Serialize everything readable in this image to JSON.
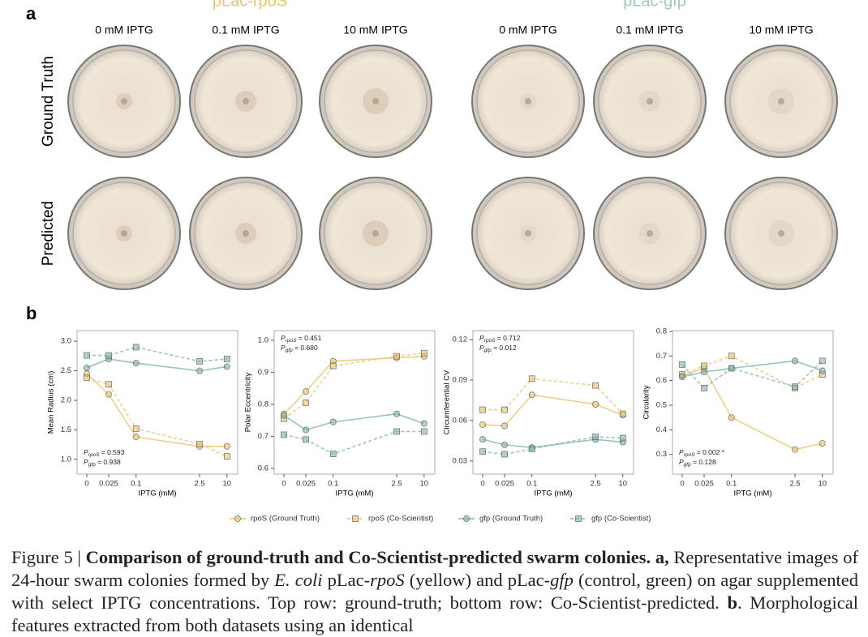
{
  "panel_a": {
    "label": "a",
    "groups": [
      {
        "title": "pLac-rpoS",
        "color": "#e9c46a",
        "columns": [
          "0 mM IPTG",
          "0.1 mM IPTG",
          "10 mM IPTG"
        ]
      },
      {
        "title": "pLac-gfp",
        "color": "#9cc9c4",
        "columns": [
          "0 mM IPTG",
          "0.1 mM IPTG",
          "10 mM IPTG"
        ]
      }
    ],
    "rows": [
      "Ground Truth",
      "Predicted"
    ]
  },
  "panel_b_label": "b",
  "chart_data": [
    {
      "type": "line",
      "xscale": "symlog",
      "x": [
        0,
        0.025,
        0.1,
        2.5,
        10
      ],
      "xlabel": "IPTG (mM)",
      "ylabel": "Mean Radius (cm)",
      "ylim": [
        0.75,
        3.18
      ],
      "yticks": [
        {
          "value": 1,
          "label": "1.0"
        },
        {
          "value": 1.5,
          "label": "1.5"
        },
        {
          "value": 2,
          "label": "2.0"
        },
        {
          "value": 2.5,
          "label": "2.5"
        },
        {
          "value": 3,
          "label": "3.0"
        }
      ],
      "annotation_corner": "lower left",
      "annotations": [
        {
          "main": "P",
          "sub": "rpoS",
          "rest": " = 0.593"
        },
        {
          "main": "P",
          "sub": "gfp",
          "rest": " = 0.938"
        }
      ],
      "series": [
        {
          "name": "rpoS (Ground Truth)",
          "color": "#e9c46a",
          "marker": "circle",
          "dashed": false,
          "values": [
            2.45,
            2.1,
            1.38,
            1.22,
            1.22
          ]
        },
        {
          "name": "rpoS (Co-Scientist)",
          "color": "#e9c46a",
          "marker": "square",
          "dashed": true,
          "values": [
            2.38,
            2.27,
            1.52,
            1.26,
            1.05
          ]
        },
        {
          "name": "gfp (Ground Truth)",
          "color": "#7fb5b0",
          "marker": "circle",
          "dashed": false,
          "values": [
            2.55,
            2.7,
            2.63,
            2.5,
            2.57
          ]
        },
        {
          "name": "gfp (Co-Scientist)",
          "color": "#7fb5b0",
          "marker": "square",
          "dashed": true,
          "values": [
            2.76,
            2.76,
            2.9,
            2.66,
            2.7
          ]
        }
      ]
    },
    {
      "type": "line",
      "xscale": "symlog",
      "x": [
        0,
        0.025,
        0.1,
        2.5,
        10
      ],
      "xlabel": "IPTG (mM)",
      "ylabel": "Polar Eccentricity",
      "ylim": [
        0.582,
        1.03
      ],
      "yticks": [
        0.6,
        0.7,
        0.8,
        0.9,
        {
          "value": 1,
          "label": "1.0"
        }
      ],
      "annotation_corner": "upper left",
      "annotations": [
        {
          "main": "P",
          "sub": "rpoS",
          "rest": " = 0.451"
        },
        {
          "main": "P",
          "sub": "gfp",
          "rest": " = 0.680"
        }
      ],
      "series": [
        {
          "name": "rpoS (Ground Truth)",
          "color": "#e9c46a",
          "marker": "circle",
          "dashed": false,
          "values": [
            0.77,
            0.84,
            0.935,
            0.945,
            0.95
          ]
        },
        {
          "name": "rpoS (Co-Scientist)",
          "color": "#e9c46a",
          "marker": "square",
          "dashed": true,
          "values": [
            0.755,
            0.805,
            0.92,
            0.95,
            0.96
          ]
        },
        {
          "name": "gfp (Ground Truth)",
          "color": "#7fb5b0",
          "marker": "circle",
          "dashed": false,
          "values": [
            0.765,
            0.72,
            0.745,
            0.77,
            0.74
          ]
        },
        {
          "name": "gfp (Co-Scientist)",
          "color": "#7fb5b0",
          "marker": "square",
          "dashed": true,
          "values": [
            0.705,
            0.69,
            0.645,
            0.715,
            0.715
          ]
        }
      ]
    },
    {
      "type": "line",
      "xscale": "symlog",
      "x": [
        0,
        0.025,
        0.1,
        2.5,
        10
      ],
      "xlabel": "IPTG (mM)",
      "ylabel": "Circumferential CV",
      "ylim": [
        0.0203,
        0.1266
      ],
      "yticks": [
        0.03,
        0.06,
        0.09,
        {
          "value": 0.12,
          "label": "0.12"
        }
      ],
      "annotation_corner": "upper left",
      "annotations": [
        {
          "main": "P",
          "sub": "rpoS",
          "rest": " = 0.712"
        },
        {
          "main": "P",
          "sub": "gfp",
          "rest": " = 0.012"
        }
      ],
      "series": [
        {
          "name": "rpoS (Ground Truth)",
          "color": "#e9c46a",
          "marker": "circle",
          "dashed": false,
          "values": [
            0.057,
            0.056,
            0.079,
            0.072,
            0.064
          ]
        },
        {
          "name": "rpoS (Co-Scientist)",
          "color": "#e9c46a",
          "marker": "square",
          "dashed": true,
          "values": [
            0.068,
            0.068,
            0.091,
            0.086,
            0.065
          ]
        },
        {
          "name": "gfp (Ground Truth)",
          "color": "#7fb5b0",
          "marker": "circle",
          "dashed": false,
          "values": [
            0.046,
            0.042,
            0.04,
            0.046,
            0.044
          ]
        },
        {
          "name": "gfp (Co-Scientist)",
          "color": "#7fb5b0",
          "marker": "square",
          "dashed": true,
          "values": [
            0.037,
            0.035,
            0.039,
            0.048,
            0.047
          ]
        }
      ]
    },
    {
      "type": "line",
      "xscale": "symlog",
      "x": [
        0,
        0.025,
        0.1,
        2.5,
        10
      ],
      "xlabel": "IPTG (mM)",
      "ylabel": "Circularity",
      "ylim": [
        0.22,
        0.803
      ],
      "yticks": [
        0.3,
        0.4,
        0.5,
        0.6,
        0.7,
        0.8
      ],
      "annotation_corner": "lower left",
      "annotations": [
        {
          "main": "P",
          "sub": "rpoS",
          "rest": " = 0.002 *"
        },
        {
          "main": "P",
          "sub": "gfp",
          "rest": " = 0.128"
        }
      ],
      "series": [
        {
          "name": "rpoS (Ground Truth)",
          "color": "#e9c46a",
          "marker": "circle",
          "dashed": false,
          "values": [
            0.62,
            0.65,
            0.45,
            0.32,
            0.345
          ]
        },
        {
          "name": "rpoS (Co-Scientist)",
          "color": "#e9c46a",
          "marker": "square",
          "dashed": true,
          "values": [
            0.625,
            0.66,
            0.7,
            0.57,
            0.625
          ]
        },
        {
          "name": "gfp (Ground Truth)",
          "color": "#7fb5b0",
          "marker": "circle",
          "dashed": false,
          "values": [
            0.615,
            0.635,
            0.65,
            0.68,
            0.64
          ]
        },
        {
          "name": "gfp (Co-Scientist)",
          "color": "#7fb5b0",
          "marker": "square",
          "dashed": true,
          "values": [
            0.665,
            0.57,
            0.65,
            0.575,
            0.68
          ]
        }
      ]
    }
  ],
  "caption": [
    {
      "text": "Figure 5 | ",
      "style": "normal"
    },
    {
      "text": "Comparison of ground-truth and Co-Scientist-predicted swarm colonies.",
      "style": "bold"
    },
    {
      "text": " ",
      "style": "normal"
    },
    {
      "text": "a,",
      "style": "bold"
    },
    {
      "text": " Representative images of 24-hour swarm colonies formed by ",
      "style": "normal"
    },
    {
      "text": "E. coli",
      "style": "italic"
    },
    {
      "text": " pLac-",
      "style": "normal"
    },
    {
      "text": "rpoS",
      "style": "italic"
    },
    {
      "text": " (yellow) and pLac-",
      "style": "normal"
    },
    {
      "text": "gfp",
      "style": "italic"
    },
    {
      "text": " (control, green) on agar supplemented with select IPTG concentrations. Top row: ground-truth; bottom row: Co-Scientist-predicted. ",
      "style": "normal"
    },
    {
      "text": "b",
      "style": "bold"
    },
    {
      "text": ". Morphological features extracted from both datasets using an identical",
      "style": "normal"
    }
  ]
}
